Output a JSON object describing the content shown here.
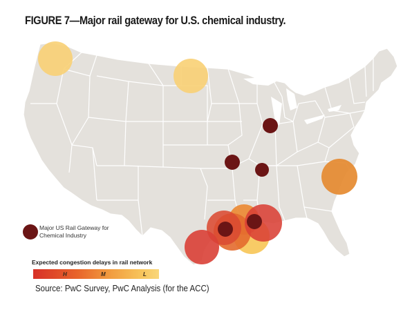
{
  "figure": {
    "title": "FIGURE 7—Major rail gateway for U.S. chemical industry."
  },
  "legend": {
    "marker_label_line1": "Major US Rail Gateway for",
    "marker_label_line2": "Chemical Industry",
    "marker_color": "#6b1515",
    "gradient_title": "Expected congestion delays in rail network",
    "ticks": [
      "H",
      "M",
      "L"
    ],
    "colors": {
      "high": "#d73027",
      "medium": "#ef8a3a",
      "low": "#f9d77a"
    }
  },
  "source": "Source: PwC Survey, PwC Analysis (for the ACC)",
  "map": {
    "land_color": "#e4e1dc",
    "border_color": "#ffffff",
    "congestion_zones": [
      {
        "region": "Seattle / Pacific Northwest",
        "level": "low"
      },
      {
        "region": "North Dakota",
        "level": "low"
      },
      {
        "region": "Atlanta / Carolinas",
        "level": "medium"
      },
      {
        "region": "Houston",
        "level": "high"
      },
      {
        "region": "Gulf Coast (Louisiana)",
        "level": "high"
      },
      {
        "region": "Lake Charles",
        "level": "medium"
      },
      {
        "region": "Baton Rouge",
        "level": "low"
      },
      {
        "region": "South Texas",
        "level": "high"
      }
    ],
    "gateways": [
      {
        "city": "Chicago"
      },
      {
        "city": "Kansas City"
      },
      {
        "city": "Memphis"
      },
      {
        "city": "Houston"
      },
      {
        "city": "New Orleans"
      }
    ]
  }
}
